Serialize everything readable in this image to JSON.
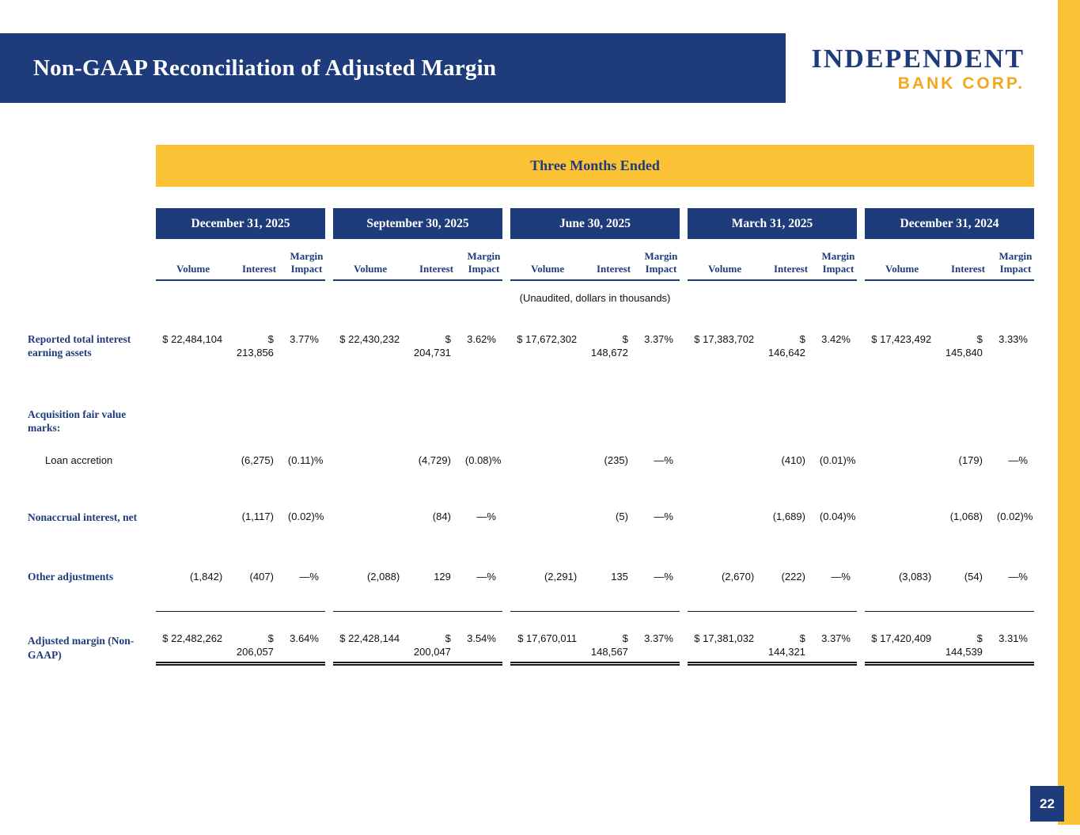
{
  "slide": {
    "title": "Non-GAAP Reconciliation of Adjusted Margin",
    "page_number": "22"
  },
  "logo": {
    "name": "INDEPENDENT",
    "tagline": "BANK CORP."
  },
  "colors": {
    "navy": "#1e3c7b",
    "gold": "#fcc235",
    "logo_gold": "#f2a81d"
  },
  "table": {
    "banner": "Three Months Ended",
    "note": "(Unaudited, dollars in thousands)",
    "periods": [
      "December 31, 2025",
      "September 30, 2025",
      "June 30, 2025",
      "March 31, 2025",
      "December 31, 2024"
    ],
    "columns": [
      "Volume",
      "Interest",
      "Margin Impact"
    ],
    "rows": [
      {
        "label": "Reported total interest earning assets",
        "values": [
          [
            "$ 22,484,104",
            "$ 213,856",
            "3.77%"
          ],
          [
            "$ 22,430,232",
            "$ 204,731",
            "3.62%"
          ],
          [
            "$ 17,672,302",
            "$ 148,672",
            "3.37%"
          ],
          [
            "$ 17,383,702",
            "$ 146,642",
            "3.42%"
          ],
          [
            "$ 17,423,492",
            "$ 145,840",
            "3.33%"
          ]
        ]
      },
      {
        "label": "Acquisition fair value marks:",
        "values": []
      },
      {
        "label": "Loan accretion",
        "values": [
          [
            "",
            "(6,275)",
            "(0.11)%"
          ],
          [
            "",
            "(4,729)",
            "(0.08)%"
          ],
          [
            "",
            "(235)",
            "—%"
          ],
          [
            "",
            "(410)",
            "(0.01)%"
          ],
          [
            "",
            "(179)",
            "—%"
          ]
        ]
      },
      {
        "label": "Nonaccrual interest, net",
        "values": [
          [
            "",
            "(1,117)",
            "(0.02)%"
          ],
          [
            "",
            "(84)",
            "—%"
          ],
          [
            "",
            "(5)",
            "—%"
          ],
          [
            "",
            "(1,689)",
            "(0.04)%"
          ],
          [
            "",
            "(1,068)",
            "(0.02)%"
          ]
        ]
      },
      {
        "label": "Other adjustments",
        "values": [
          [
            "(1,842)",
            "(407)",
            "—%"
          ],
          [
            "(2,088)",
            "129",
            "—%"
          ],
          [
            "(2,291)",
            "135",
            "—%"
          ],
          [
            "(2,670)",
            "(222)",
            "—%"
          ],
          [
            "(3,083)",
            "(54)",
            "—%"
          ]
        ]
      },
      {
        "label": "Adjusted margin (Non-GAAP)",
        "values": [
          [
            "$ 22,482,262",
            "$ 206,057",
            "3.64%"
          ],
          [
            "$ 22,428,144",
            "$ 200,047",
            "3.54%"
          ],
          [
            "$ 17,670,011",
            "$ 148,567",
            "3.37%"
          ],
          [
            "$ 17,381,032",
            "$ 144,321",
            "3.37%"
          ],
          [
            "$ 17,420,409",
            "$ 144,539",
            "3.31%"
          ]
        ]
      }
    ]
  }
}
